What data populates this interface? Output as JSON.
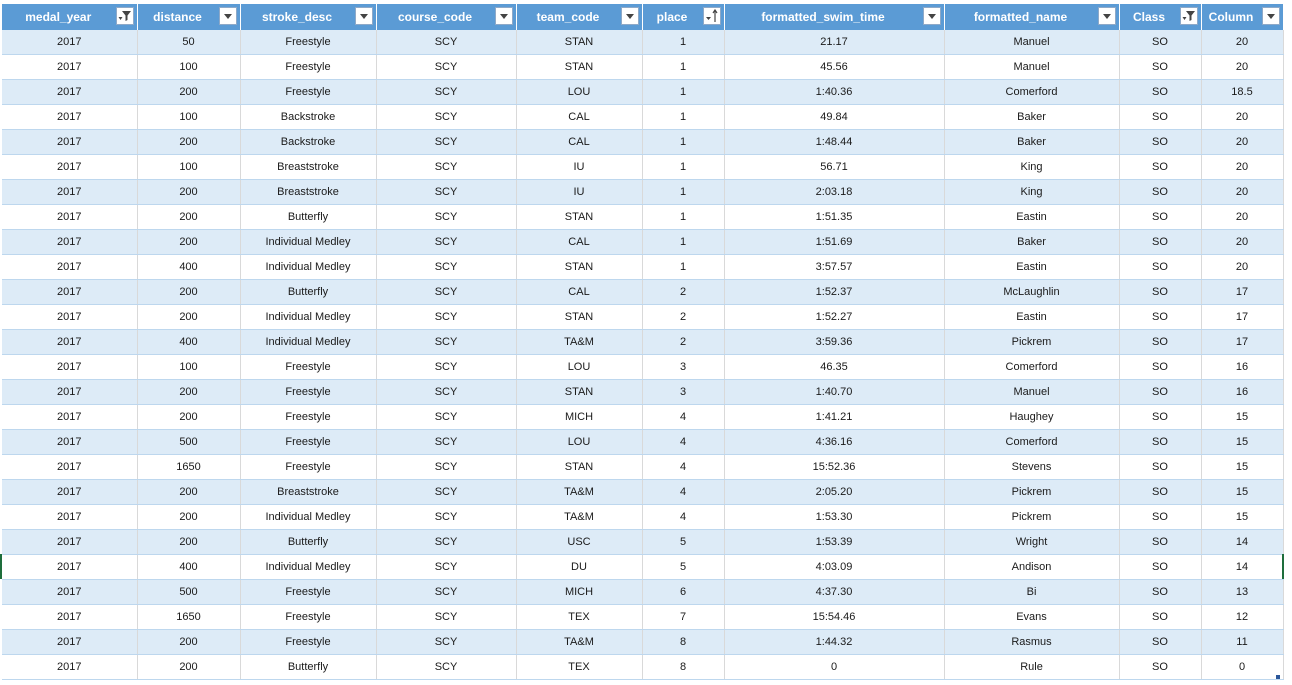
{
  "columns": [
    {
      "label": "medal_year",
      "filter": "filter-applied"
    },
    {
      "label": "distance",
      "filter": "dropdown"
    },
    {
      "label": "stroke_desc",
      "filter": "dropdown"
    },
    {
      "label": "course_code",
      "filter": "dropdown"
    },
    {
      "label": "team_code",
      "filter": "dropdown"
    },
    {
      "label": "place",
      "filter": "sort-ascending"
    },
    {
      "label": "formatted_swim_time",
      "filter": "dropdown"
    },
    {
      "label": "formatted_name",
      "filter": "dropdown"
    },
    {
      "label": "Class",
      "filter": "filter-applied"
    },
    {
      "label": "Column",
      "filter": "dropdown"
    }
  ],
  "rows": [
    [
      "2017",
      "50",
      "Freestyle",
      "SCY",
      "STAN",
      "1",
      "21.17",
      "Manuel",
      "SO",
      "20"
    ],
    [
      "2017",
      "100",
      "Freestyle",
      "SCY",
      "STAN",
      "1",
      "45.56",
      "Manuel",
      "SO",
      "20"
    ],
    [
      "2017",
      "200",
      "Freestyle",
      "SCY",
      "LOU",
      "1",
      "1:40.36",
      "Comerford",
      "SO",
      "18.5"
    ],
    [
      "2017",
      "100",
      "Backstroke",
      "SCY",
      "CAL",
      "1",
      "49.84",
      "Baker",
      "SO",
      "20"
    ],
    [
      "2017",
      "200",
      "Backstroke",
      "SCY",
      "CAL",
      "1",
      "1:48.44",
      "Baker",
      "SO",
      "20"
    ],
    [
      "2017",
      "100",
      "Breaststroke",
      "SCY",
      "IU",
      "1",
      "56.71",
      "King",
      "SO",
      "20"
    ],
    [
      "2017",
      "200",
      "Breaststroke",
      "SCY",
      "IU",
      "1",
      "2:03.18",
      "King",
      "SO",
      "20"
    ],
    [
      "2017",
      "200",
      "Butterfly",
      "SCY",
      "STAN",
      "1",
      "1:51.35",
      "Eastin",
      "SO",
      "20"
    ],
    [
      "2017",
      "200",
      "Individual Medley",
      "SCY",
      "CAL",
      "1",
      "1:51.69",
      "Baker",
      "SO",
      "20"
    ],
    [
      "2017",
      "400",
      "Individual Medley",
      "SCY",
      "STAN",
      "1",
      "3:57.57",
      "Eastin",
      "SO",
      "20"
    ],
    [
      "2017",
      "200",
      "Butterfly",
      "SCY",
      "CAL",
      "2",
      "1:52.37",
      "McLaughlin",
      "SO",
      "17"
    ],
    [
      "2017",
      "200",
      "Individual Medley",
      "SCY",
      "STAN",
      "2",
      "1:52.27",
      "Eastin",
      "SO",
      "17"
    ],
    [
      "2017",
      "400",
      "Individual Medley",
      "SCY",
      "TA&M",
      "2",
      "3:59.36",
      "Pickrem",
      "SO",
      "17"
    ],
    [
      "2017",
      "100",
      "Freestyle",
      "SCY",
      "LOU",
      "3",
      "46.35",
      "Comerford",
      "SO",
      "16"
    ],
    [
      "2017",
      "200",
      "Freestyle",
      "SCY",
      "STAN",
      "3",
      "1:40.70",
      "Manuel",
      "SO",
      "16"
    ],
    [
      "2017",
      "200",
      "Freestyle",
      "SCY",
      "MICH",
      "4",
      "1:41.21",
      "Haughey",
      "SO",
      "15"
    ],
    [
      "2017",
      "500",
      "Freestyle",
      "SCY",
      "LOU",
      "4",
      "4:36.16",
      "Comerford",
      "SO",
      "15"
    ],
    [
      "2017",
      "1650",
      "Freestyle",
      "SCY",
      "STAN",
      "4",
      "15:52.36",
      "Stevens",
      "SO",
      "15"
    ],
    [
      "2017",
      "200",
      "Breaststroke",
      "SCY",
      "TA&M",
      "4",
      "2:05.20",
      "Pickrem",
      "SO",
      "15"
    ],
    [
      "2017",
      "200",
      "Individual Medley",
      "SCY",
      "TA&M",
      "4",
      "1:53.30",
      "Pickrem",
      "SO",
      "15"
    ],
    [
      "2017",
      "200",
      "Butterfly",
      "SCY",
      "USC",
      "5",
      "1:53.39",
      "Wright",
      "SO",
      "14"
    ],
    [
      "2017",
      "400",
      "Individual Medley",
      "SCY",
      "DU",
      "5",
      "4:03.09",
      "Andison",
      "SO",
      "14"
    ],
    [
      "2017",
      "500",
      "Freestyle",
      "SCY",
      "MICH",
      "6",
      "4:37.30",
      "Bi",
      "SO",
      "13"
    ],
    [
      "2017",
      "1650",
      "Freestyle",
      "SCY",
      "TEX",
      "7",
      "15:54.46",
      "Evans",
      "SO",
      "12"
    ],
    [
      "2017",
      "200",
      "Freestyle",
      "SCY",
      "TA&M",
      "8",
      "1:44.32",
      "Rasmus",
      "SO",
      "11"
    ],
    [
      "2017",
      "200",
      "Butterfly",
      "SCY",
      "TEX",
      "8",
      "0",
      "Rule",
      "SO",
      "0"
    ]
  ],
  "colors": {
    "header": "#5b9bd5",
    "band": "#ddebf7",
    "border": "#bdd7ee"
  }
}
